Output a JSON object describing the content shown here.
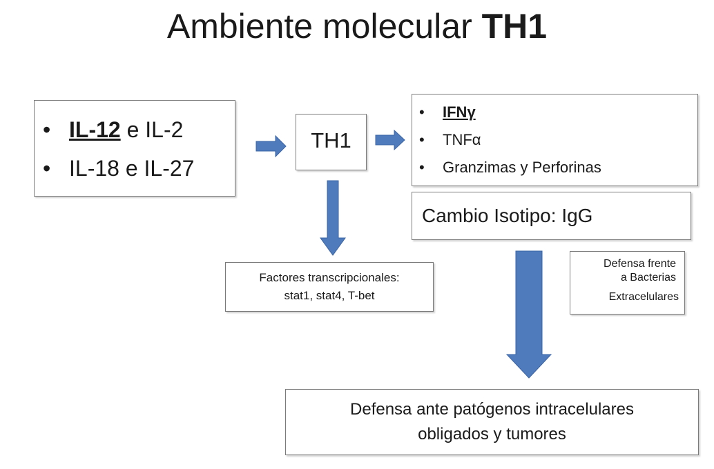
{
  "title": {
    "prefix": "Ambiente molecular ",
    "bold": "TH1"
  },
  "inputs": {
    "items": [
      {
        "bullet": "•",
        "bold_underlined": "IL-12",
        "rest": " e IL-2"
      },
      {
        "bullet": "•",
        "bold_underlined": "",
        "rest": "IL-18 e IL-27"
      }
    ]
  },
  "cell": {
    "label": "TH1"
  },
  "effectors": {
    "items": [
      {
        "bullet": "•",
        "bold_underlined": "IFNγ",
        "rest": ""
      },
      {
        "bullet": "•",
        "bold_underlined": "",
        "rest": "TNFα"
      },
      {
        "bullet": "•",
        "bold_underlined": "",
        "rest": "Granzimas y Perforinas"
      }
    ]
  },
  "isotype": {
    "label": "Cambio Isotipo: IgG"
  },
  "transcription_factors": {
    "line1": "Factores transcripcionales:",
    "line2": "stat1, stat4, T-bet"
  },
  "bacteria_defense": {
    "line1": "Defensa frente",
    "line2": "a Bacterias",
    "line3": "Extracelulares"
  },
  "outcome": {
    "line1": "Defensa ante patógenos intracelulares",
    "line2": "obligados y tumores"
  },
  "colors": {
    "arrow_fill": "#4f7bbd",
    "arrow_stroke": "#3a64a6",
    "box_border": "#7a7a7a"
  }
}
